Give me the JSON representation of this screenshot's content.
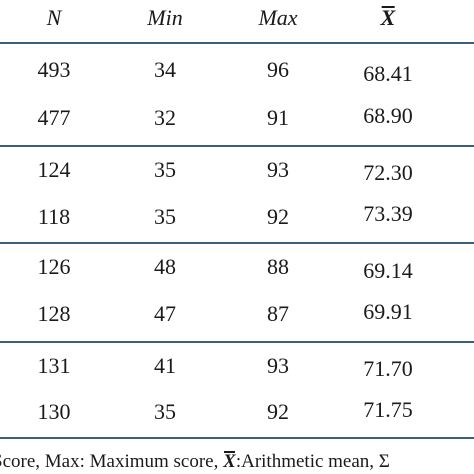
{
  "table": {
    "headers": {
      "n": "N",
      "min": "Min",
      "max": "Max",
      "mean": "X"
    },
    "groups": [
      {
        "rows": [
          {
            "n": "493",
            "min": "34",
            "max": "96",
            "mean": "68.41"
          },
          {
            "n": "477",
            "min": "32",
            "max": "91",
            "mean": "68.90"
          }
        ]
      },
      {
        "rows": [
          {
            "n": "124",
            "min": "35",
            "max": "93",
            "mean": "72.30"
          },
          {
            "n": "118",
            "min": "35",
            "max": "92",
            "mean": "73.39"
          }
        ]
      },
      {
        "rows": [
          {
            "n": "126",
            "min": "48",
            "max": "88",
            "mean": "69.14"
          },
          {
            "n": "128",
            "min": "47",
            "max": "87",
            "mean": "69.91"
          }
        ]
      },
      {
        "rows": [
          {
            "n": "131",
            "min": "41",
            "max": "93",
            "mean": "71.70"
          },
          {
            "n": "130",
            "min": "35",
            "max": "92",
            "mean": "71.75"
          }
        ]
      }
    ]
  },
  "footnote": {
    "part1": "Score, Max: Maximum score, ",
    "symbol": "X",
    "part2": ":Arithmetic mean, Σ"
  },
  "colors": {
    "rule": "#3d5f7a",
    "text": "#1a1a1a"
  }
}
